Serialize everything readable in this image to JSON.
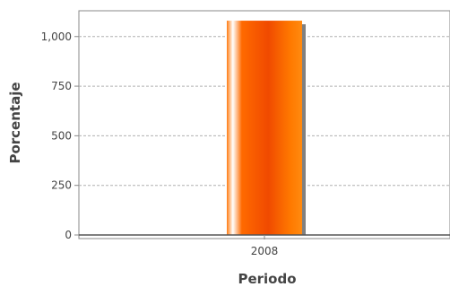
{
  "chart_data": {
    "type": "bar",
    "title": "",
    "xlabel": "Periodo",
    "ylabel": "Porcentaje",
    "categories": [
      "2008"
    ],
    "values": [
      1080
    ],
    "ylim": [
      0,
      1130
    ],
    "yticks": [
      0,
      250,
      500,
      750,
      1000
    ],
    "ytick_labels": [
      "0",
      "250",
      "500",
      "750",
      "1,000"
    ],
    "grid": true,
    "legend": "none",
    "colors": {
      "bar": "#ff6a00",
      "bar_highlight": "#ffffff",
      "bar_dark": "#f04a00",
      "bar_shadow": "#808080",
      "grid": "#b0b0b0",
      "axis": "#888888",
      "text": "#444444"
    }
  }
}
